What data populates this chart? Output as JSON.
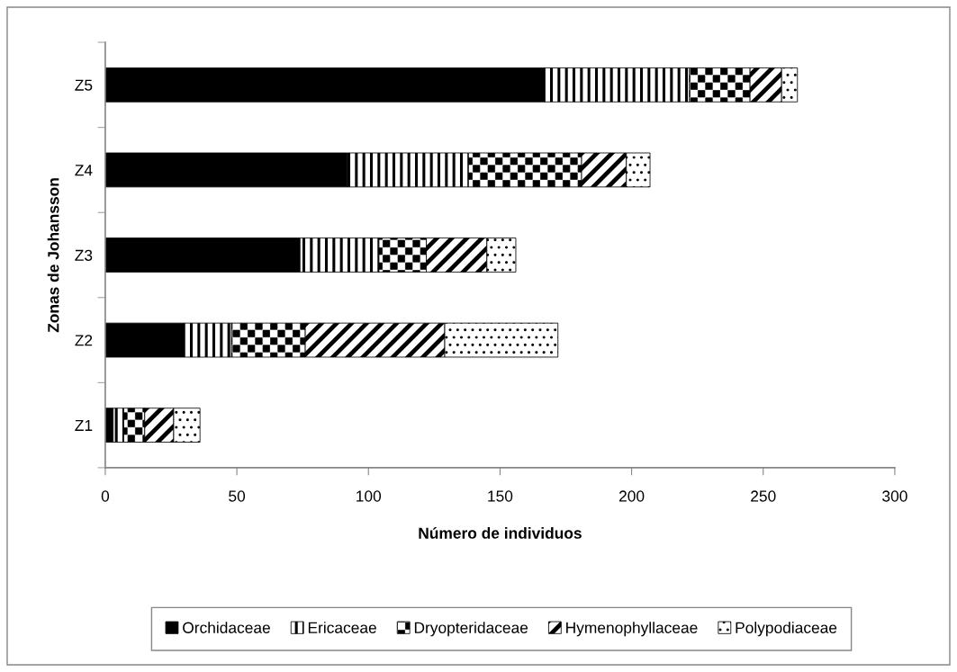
{
  "chart_data": {
    "type": "bar",
    "orientation": "horizontal",
    "stacked": true,
    "xlabel": "Número de individuos",
    "ylabel": "Zonas de Johansson",
    "categories": [
      "Z5",
      "Z4",
      "Z3",
      "Z2",
      "Z1"
    ],
    "series": [
      {
        "name": "Orchidaceae",
        "color": "#000000",
        "values": [
          167,
          92,
          74,
          30,
          3
        ]
      },
      {
        "name": "Ericaceae",
        "color": "#000000",
        "values": [
          55,
          46,
          30,
          18,
          4
        ]
      },
      {
        "name": "Dryopteridaceae",
        "color": "#000000",
        "values": [
          23,
          43,
          18,
          28,
          8
        ]
      },
      {
        "name": "Hymenophyllaceae",
        "color": "#000000",
        "values": [
          12,
          17,
          23,
          53,
          11
        ]
      },
      {
        "name": "Polypodiaceae",
        "color": "#000000",
        "values": [
          6,
          9,
          11,
          43,
          10
        ]
      }
    ],
    "xlim": [
      0,
      300
    ],
    "xticks": [
      0,
      50,
      100,
      150,
      200,
      250,
      300
    ],
    "legend": "bottom"
  }
}
